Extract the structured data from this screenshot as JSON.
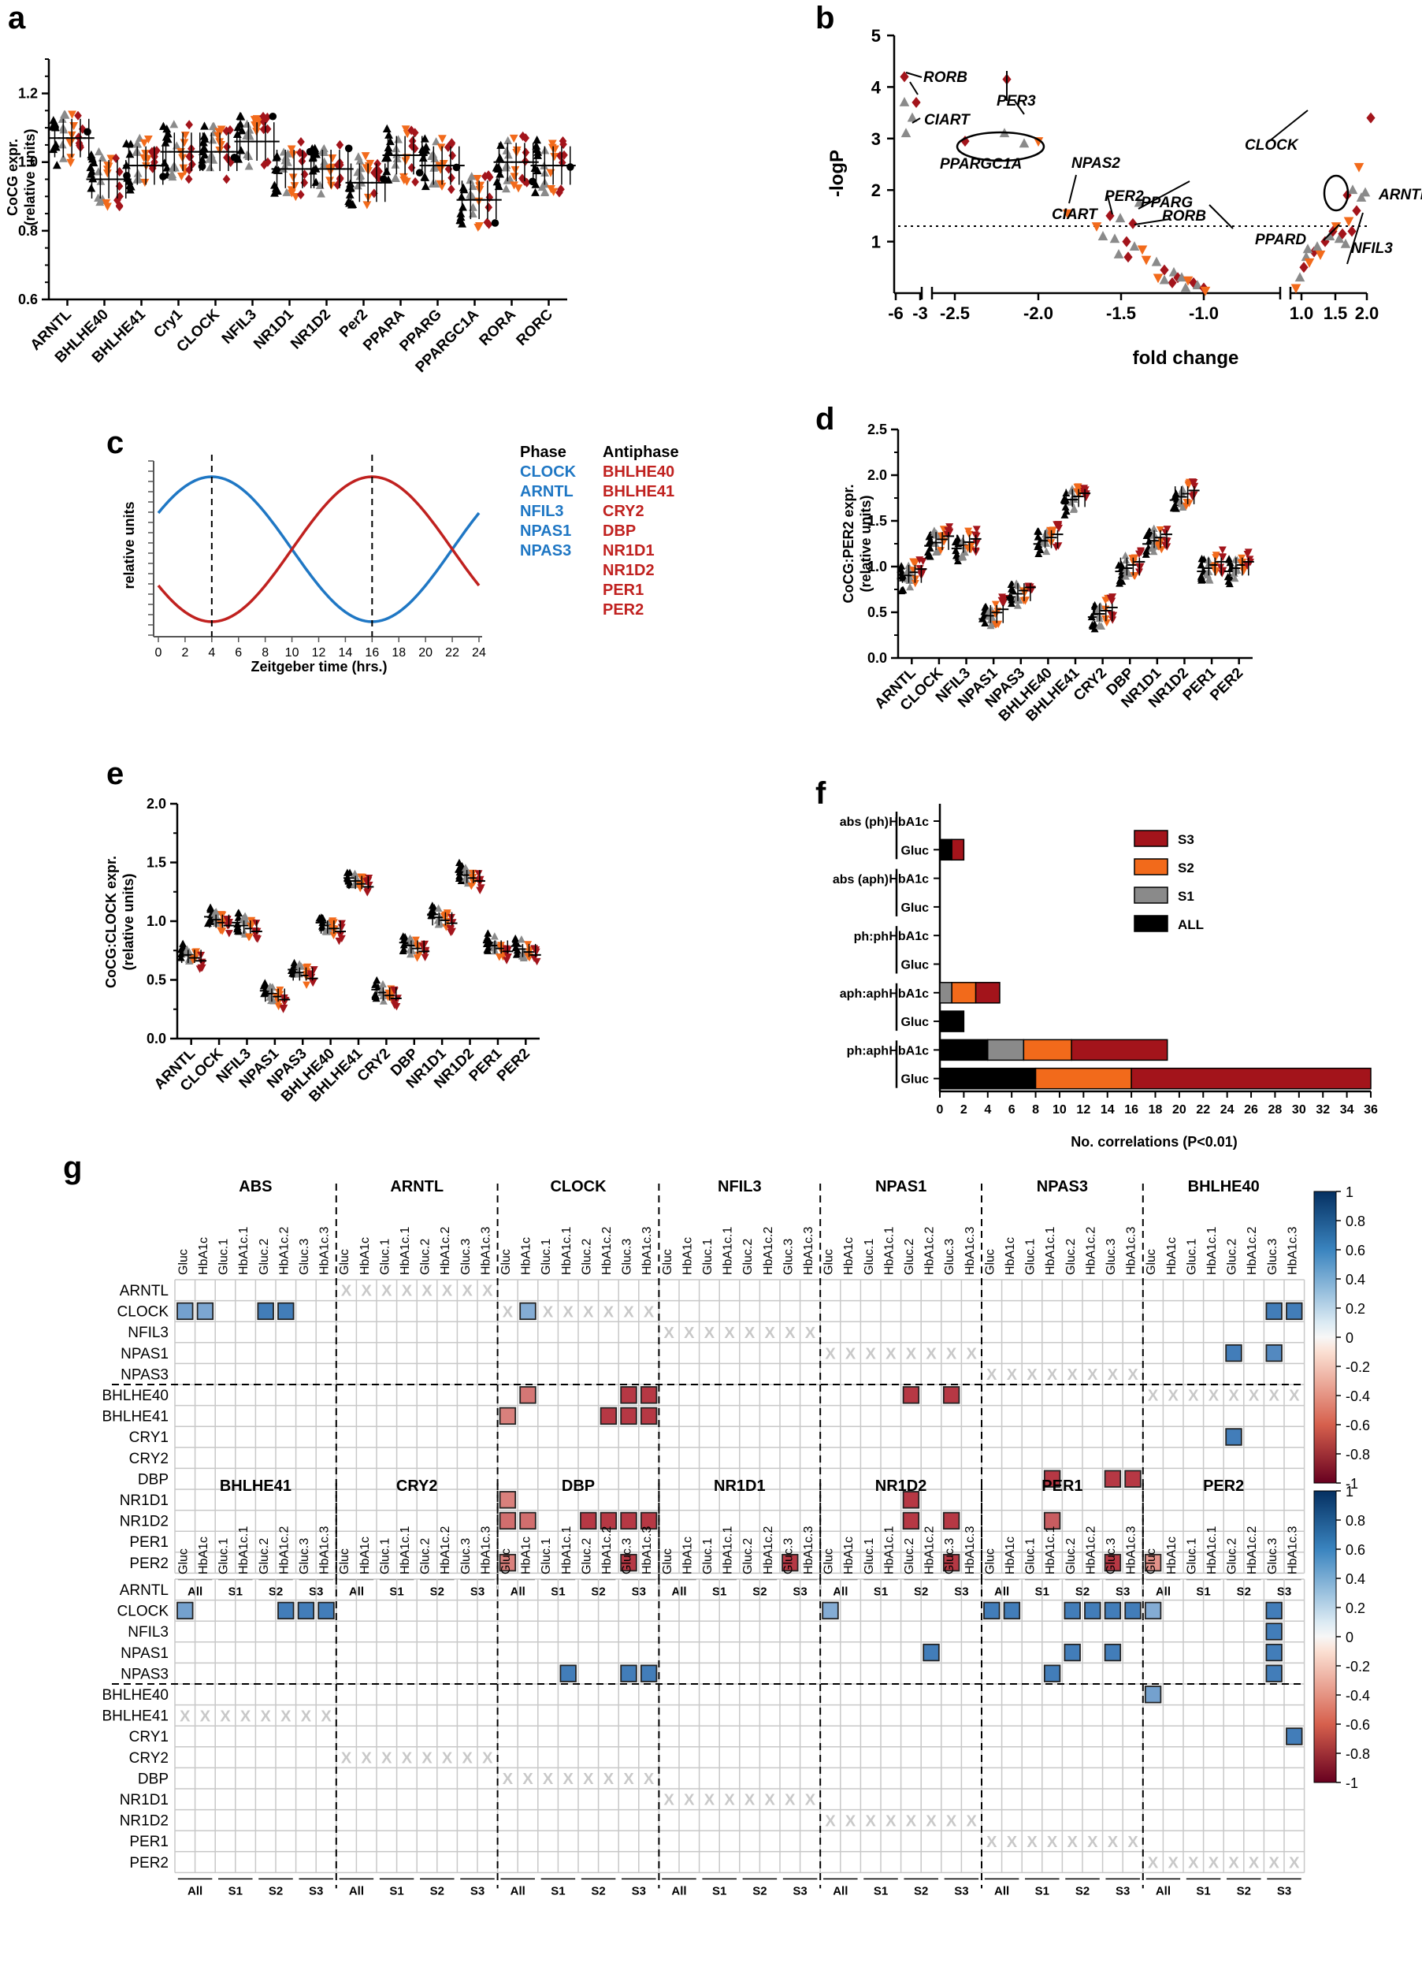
{
  "panel_labels": [
    "a",
    "b",
    "c",
    "d",
    "e",
    "f",
    "g"
  ],
  "chart_data": [
    {
      "panel": "a",
      "type": "scatter",
      "ylabel_line1": "CoCG expr.",
      "ylabel_line2": "(relative units)",
      "ylim": [
        0.6,
        1.3
      ],
      "yticks": [
        "0.6",
        "0.8",
        "1.0",
        "1.2"
      ],
      "categories": [
        "ARNTL",
        "BHLHE40",
        "BHLHE41",
        "Cry1",
        "CLOCK",
        "NFIL3",
        "NR1D1",
        "NR1D2",
        "Per2",
        "PPARA",
        "PPARG",
        "PPARGC1A",
        "RORA",
        "RORC"
      ],
      "group_means": [
        1.07,
        0.95,
        0.99,
        1.03,
        1.03,
        1.06,
        0.98,
        0.98,
        0.94,
        1.02,
        0.99,
        0.89,
        1.0,
        0.99
      ]
    },
    {
      "panel": "b",
      "type": "scatter",
      "xlabel": "fold change",
      "ylabel": "-logP",
      "ylim": [
        0,
        5
      ],
      "yticks": [
        "1",
        "2",
        "3",
        "4",
        "5"
      ],
      "xticks": [
        "-6",
        "-3",
        "-2.5",
        "-2.0",
        "-1.5",
        "-1.0",
        "1.0",
        "1.5",
        "2.0"
      ],
      "threshold": 1.3,
      "annotations": [
        "RORB",
        "CIART",
        "PER3",
        "PPARGC1A",
        "NPAS2",
        "PER2",
        "PPARG",
        "CIART",
        "RORB",
        "CLOCK",
        "ARNTL",
        "PPARD",
        "NFIL3"
      ]
    },
    {
      "panel": "c",
      "type": "line",
      "xlabel": "Zeitgeber time (hrs.)",
      "ylabel": "relative units",
      "xticks": [
        "0",
        "2",
        "4",
        "6",
        "8",
        "10",
        "12",
        "14",
        "16",
        "18",
        "20",
        "22",
        "24"
      ],
      "phase_header": "Phase",
      "antiphase_header": "Antiphase",
      "phase_genes": [
        "CLOCK",
        "ARNTL",
        "NFIL3",
        "NPAS1",
        "NPAS3"
      ],
      "antiphase_genes": [
        "BHLHE40",
        "BHLHE41",
        "CRY2",
        "DBP",
        "NR1D1",
        "NR1D2",
        "PER1",
        "PER2"
      ],
      "phase_color": "#1f77c4",
      "antiphase_color": "#c0211f"
    },
    {
      "panel": "d",
      "type": "scatter",
      "ylabel_line1": "CoCG:PER2 expr.",
      "ylabel_line2": "(relative units)",
      "ylim": [
        0,
        2.5
      ],
      "yticks": [
        "0.0",
        "0.5",
        "1.0",
        "1.5",
        "2.0",
        "2.5"
      ],
      "categories": [
        "ARNTL",
        "CLOCK",
        "NFIL3",
        "NPAS1",
        "NPAS3",
        "BHLHE40",
        "BHLHE41",
        "CRY2",
        "DBP",
        "NR1D1",
        "NR1D2",
        "PER1",
        "PER2"
      ],
      "group_means": [
        0.92,
        1.28,
        1.25,
        0.48,
        0.72,
        1.3,
        1.75,
        0.5,
        1.0,
        1.3,
        1.78,
        1.0,
        1.0
      ]
    },
    {
      "panel": "e",
      "type": "scatter",
      "ylabel_line1": "CoCG:CLOCK expr.",
      "ylabel_line2": "(relative units)",
      "ylim": [
        0,
        2.0
      ],
      "yticks": [
        "0.0",
        "0.5",
        "1.0",
        "1.5",
        "2.0"
      ],
      "categories": [
        "ARNTL",
        "CLOCK",
        "NFIL3",
        "NPAS1",
        "NPAS3",
        "BHLHE40",
        "BHLHE41",
        "CRY2",
        "DBP",
        "NR1D1",
        "NR1D2",
        "PER1",
        "PER2"
      ],
      "group_means": [
        0.7,
        1.0,
        0.95,
        0.37,
        0.55,
        0.95,
        1.33,
        0.38,
        0.78,
        1.02,
        1.38,
        0.78,
        0.75
      ]
    },
    {
      "panel": "f",
      "type": "bar",
      "xlabel": "No. correlations (P<0.01)",
      "xlim": [
        0,
        36
      ],
      "xticks": [
        "0",
        "2",
        "4",
        "6",
        "8",
        "10",
        "12",
        "14",
        "16",
        "18",
        "20",
        "22",
        "24",
        "26",
        "28",
        "30",
        "32",
        "34",
        "36"
      ],
      "groups": [
        "abs (ph)",
        "abs (aph)",
        "ph:ph",
        "aph:aph",
        "ph:aph"
      ],
      "rows": [
        "HbA1c",
        "Gluc",
        "HbA1c",
        "Gluc",
        "HbA1c",
        "Gluc",
        "HbA1c",
        "Gluc",
        "HbA1c",
        "Gluc"
      ],
      "series": [
        {
          "name": "ALL",
          "color": "#000000",
          "values": [
            0,
            1,
            0,
            0,
            0,
            0,
            0,
            2,
            4,
            8
          ]
        },
        {
          "name": "S1",
          "color": "#8a8a8a",
          "values": [
            0,
            0,
            0,
            0,
            0,
            0,
            1,
            0,
            3,
            0
          ]
        },
        {
          "name": "S2",
          "color": "#f26a1b",
          "values": [
            0,
            0,
            0,
            0,
            0,
            0,
            2,
            0,
            4,
            8
          ]
        },
        {
          "name": "S3",
          "color": "#a3141b",
          "values": [
            0,
            1,
            0,
            0,
            0,
            0,
            2,
            0,
            8,
            20
          ]
        }
      ],
      "legend_order": [
        "S3",
        "S2",
        "S1",
        "ALL"
      ]
    },
    {
      "panel": "g",
      "type": "heatmap",
      "col_labels": [
        "Gluc",
        "HbA1c",
        "Gluc.1",
        "HbA1c.1",
        "Gluc.2",
        "HbA1c.2",
        "Gluc.3",
        "HbA1c.3"
      ],
      "subgroups": [
        "All",
        "S1",
        "S2",
        "S3"
      ],
      "row_labels": [
        "ARNTL",
        "CLOCK",
        "NFIL3",
        "NPAS1",
        "NPAS3",
        "BHLHE40",
        "BHLHE41",
        "CRY1",
        "CRY2",
        "DBP",
        "NR1D1",
        "NR1D2",
        "PER1",
        "PER2"
      ],
      "top_blocks": [
        "ABS",
        "ARNTL",
        "CLOCK",
        "NFIL3",
        "NPAS1",
        "NPAS3",
        "BHLHE40"
      ],
      "bottom_blocks": [
        "BHLHE41",
        "CRY2",
        "DBP",
        "NR1D1",
        "NR1D2",
        "PER1",
        "PER2"
      ],
      "colorbar_ticks": [
        "1",
        "0.8",
        "0.6",
        "0.4",
        "0.2",
        "0",
        "-0.2",
        "-0.4",
        "-0.6",
        "-0.8",
        "-1"
      ],
      "cross_mark": "X",
      "top_cells": [
        [
          1,
          0,
          0.5
        ],
        [
          1,
          1,
          0.45
        ],
        [
          1,
          4,
          0.8
        ],
        [
          1,
          5,
          0.8
        ],
        [
          1,
          17,
          0.4
        ],
        [
          1,
          54,
          0.8
        ],
        [
          1,
          55,
          0.8
        ],
        [
          3,
          52,
          0.8
        ],
        [
          3,
          54,
          0.7
        ],
        [
          5,
          17,
          -0.45
        ],
        [
          5,
          22,
          -0.8
        ],
        [
          5,
          23,
          -0.8
        ],
        [
          5,
          36,
          -0.8
        ],
        [
          5,
          38,
          -0.8
        ],
        [
          6,
          16,
          -0.4
        ],
        [
          6,
          21,
          -0.8
        ],
        [
          6,
          22,
          -0.8
        ],
        [
          6,
          23,
          -0.8
        ],
        [
          7,
          52,
          0.8
        ],
        [
          9,
          43,
          -0.8
        ],
        [
          9,
          46,
          -0.8
        ],
        [
          9,
          47,
          -0.8
        ],
        [
          10,
          16,
          -0.4
        ],
        [
          10,
          36,
          -0.8
        ],
        [
          11,
          16,
          -0.5
        ],
        [
          11,
          17,
          -0.5
        ],
        [
          11,
          20,
          -0.8
        ],
        [
          11,
          21,
          -0.8
        ],
        [
          11,
          22,
          -0.8
        ],
        [
          11,
          23,
          -0.8
        ],
        [
          11,
          36,
          -0.8
        ],
        [
          11,
          38,
          -0.8
        ],
        [
          11,
          43,
          -0.6
        ],
        [
          13,
          16,
          -0.4
        ],
        [
          13,
          22,
          -0.8
        ],
        [
          13,
          30,
          -0.8
        ],
        [
          13,
          38,
          -0.8
        ],
        [
          13,
          46,
          -0.8
        ],
        [
          13,
          48,
          -0.3
        ]
      ],
      "bottom_cells": [
        [
          1,
          0,
          0.5
        ],
        [
          1,
          5,
          0.8
        ],
        [
          1,
          6,
          0.8
        ],
        [
          1,
          7,
          0.8
        ],
        [
          1,
          32,
          0.4
        ],
        [
          1,
          40,
          0.8
        ],
        [
          1,
          41,
          0.8
        ],
        [
          1,
          44,
          0.8
        ],
        [
          1,
          45,
          0.8
        ],
        [
          1,
          46,
          0.8
        ],
        [
          1,
          47,
          0.8
        ],
        [
          1,
          48,
          0.4
        ],
        [
          1,
          54,
          0.8
        ],
        [
          2,
          54,
          0.8
        ],
        [
          3,
          37,
          0.8
        ],
        [
          3,
          44,
          0.8
        ],
        [
          3,
          46,
          0.8
        ],
        [
          3,
          54,
          0.8
        ],
        [
          4,
          19,
          0.8
        ],
        [
          4,
          22,
          0.8
        ],
        [
          4,
          23,
          0.8
        ],
        [
          4,
          43,
          0.8
        ],
        [
          4,
          54,
          0.8
        ],
        [
          5,
          48,
          0.5
        ],
        [
          7,
          55,
          0.8
        ]
      ]
    }
  ]
}
